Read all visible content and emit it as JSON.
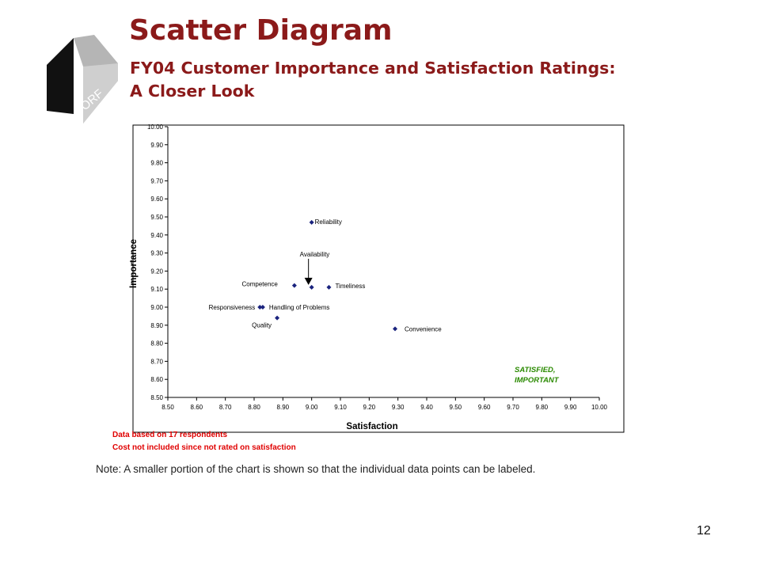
{
  "slide": {
    "title": "Scatter Diagram",
    "subtitle_line1": "FY04 Customer Importance and Satisfaction Ratings:",
    "subtitle_line2": "A Closer Look",
    "logo_text": "ORF",
    "note_respondents": "Data based on 17 respondents",
    "note_cost": "Cost not included since not rated on satisfaction",
    "footnote": "Note:  A  smaller portion of the chart is shown so that the individual data points can be labeled.",
    "page_number": "12"
  },
  "colors": {
    "title": "#8b1a1a",
    "marker": "#1a237e",
    "note": "#e00000",
    "quadrant_label": "#2a8a00"
  },
  "chart_data": {
    "type": "scatter",
    "xlabel": "Satisfaction",
    "ylabel": "Importance",
    "xlim": [
      8.5,
      10.0
    ],
    "ylim": [
      8.5,
      10.0
    ],
    "x_ticks": [
      "8.50",
      "8.60",
      "8.70",
      "8.80",
      "8.90",
      "9.00",
      "9.10",
      "9.20",
      "9.30",
      "9.40",
      "9.50",
      "9.60",
      "9.70",
      "9.80",
      "9.90",
      "10.00"
    ],
    "y_ticks": [
      "8.50",
      "8.60",
      "8.70",
      "8.80",
      "8.90",
      "9.00",
      "9.10",
      "9.20",
      "9.30",
      "9.40",
      "9.50",
      "9.60",
      "9.70",
      "9.80",
      "9.90",
      "10.00"
    ],
    "grid": false,
    "marker": "diamond",
    "points": [
      {
        "label": "Reliability",
        "x": 9.0,
        "y": 9.47
      },
      {
        "label": "Competence",
        "x": 8.94,
        "y": 9.12
      },
      {
        "label": "Availability",
        "x": 9.0,
        "y": 9.11
      },
      {
        "label": "Timeliness",
        "x": 9.06,
        "y": 9.11
      },
      {
        "label": "Responsiveness",
        "x": 8.82,
        "y": 9.0
      },
      {
        "label": "Handling of Problems",
        "x": 8.83,
        "y": 9.0
      },
      {
        "label": "Quality",
        "x": 8.88,
        "y": 8.94
      },
      {
        "label": "Convenience",
        "x": 9.29,
        "y": 8.88
      }
    ],
    "quadrant_label": [
      "SATISFIED,",
      "IMPORTANT"
    ]
  }
}
